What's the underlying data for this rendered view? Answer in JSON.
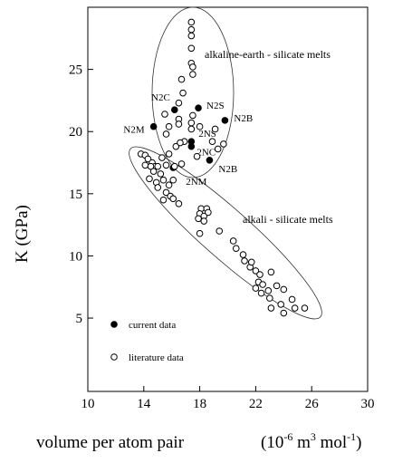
{
  "chart_data": {
    "type": "scatter",
    "ylabel": "K      (GPa)",
    "xlabel": "volume per atom pair",
    "x_unit_parts": [
      "(10",
      "-6",
      "  m",
      "3",
      "  mol",
      "-1",
      ")"
    ],
    "xlim": [
      10,
      30
    ],
    "ylim": [
      -0.9,
      30
    ],
    "xticks": [
      10,
      14,
      18,
      22,
      26,
      30
    ],
    "yticks": [
      5,
      10,
      15,
      20,
      25
    ],
    "annotations": [
      "alkaline-earth - silicate melts",
      "alkali - silicate melts"
    ],
    "series": [
      {
        "name": "current data",
        "color": "#000000",
        "filled": true,
        "point_labels": [
          "N2C",
          "N2S",
          "N2M",
          "N2B",
          "2NS",
          "2NC",
          "N2B",
          "2NM"
        ],
        "x": [
          16.2,
          17.9,
          14.7,
          19.8,
          17.4,
          17.4,
          18.7,
          16.1
        ],
        "values": [
          21.75,
          21.9,
          20.4,
          20.9,
          19.2,
          18.8,
          17.7,
          17.1
        ]
      },
      {
        "name": "literature data",
        "color": "#000000",
        "filled": false,
        "x": [
          17.4,
          17.4,
          17.4,
          17.4,
          17.4,
          17.5,
          17.5,
          16.7,
          16.8,
          16.5,
          15.5,
          16.5,
          17.5,
          17.4,
          18.0,
          16.5,
          15.8,
          17.4,
          15.6,
          19.1,
          16.9,
          18.9,
          19.7,
          16.3,
          19.3,
          15.8,
          17.8,
          16.7,
          15.6,
          16.2,
          15.3,
          16.6,
          13.8,
          14.1,
          14.3,
          14.6,
          14.8,
          14.1,
          15.0,
          14.5,
          14.7,
          15.2,
          15.4,
          14.9,
          14.4,
          15.0,
          15.8,
          16.1,
          15.6,
          15.9,
          15.4,
          16.1,
          16.5,
          18.1,
          18.5,
          18.0,
          18.3,
          18.6,
          18.3,
          17.9,
          18.0,
          19.4,
          20.4,
          20.6,
          21.1,
          21.2,
          21.6,
          22.0,
          22.3,
          22.2,
          22.5,
          22.0,
          22.4,
          22.9,
          23.0,
          23.1,
          23.8,
          24.0,
          24.6,
          24.8,
          25.5,
          24.0,
          23.5,
          23.1,
          21.7
        ],
        "values": [
          28.8,
          28.2,
          27.7,
          26.7,
          25.5,
          25.2,
          24.6,
          24.2,
          23.1,
          22.3,
          21.4,
          21.0,
          21.3,
          20.7,
          20.4,
          20.6,
          20.4,
          20.2,
          19.8,
          20.2,
          19.2,
          19.2,
          19.0,
          18.8,
          18.6,
          18.2,
          18.0,
          17.4,
          17.3,
          17.2,
          17.9,
          19.1,
          18.2,
          18.1,
          17.8,
          17.5,
          17.2,
          17.3,
          17.2,
          17.2,
          16.8,
          16.6,
          16.1,
          15.9,
          16.2,
          15.5,
          15.7,
          16.1,
          15.1,
          14.8,
          14.5,
          14.6,
          14.2,
          13.8,
          13.8,
          13.4,
          13.2,
          13.5,
          12.8,
          13.0,
          11.8,
          12.0,
          11.2,
          10.6,
          10.1,
          9.6,
          9.1,
          8.8,
          8.5,
          7.9,
          7.7,
          7.4,
          7.0,
          7.2,
          6.6,
          5.8,
          6.1,
          5.4,
          6.5,
          5.8,
          5.8,
          7.3,
          7.6,
          8.7,
          9.5
        ]
      }
    ]
  }
}
